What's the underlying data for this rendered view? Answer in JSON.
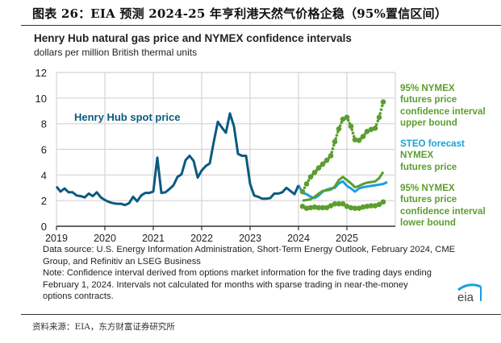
{
  "figure_title": "图表 26：EIA 预测 2024-25 年亨利港天然气价格企稳（95%置信区间）",
  "source_text": "资料来源：EIA，东方财富证券研究所",
  "chart_data": {
    "type": "line",
    "title": "Henry Hub natural gas price and NYMEX confidence intervals",
    "subtitle": "dollars per million British thermal units",
    "xlabel": "",
    "ylabel": "dollars per million British thermal units",
    "ylim": [
      0,
      12
    ],
    "yticks": [
      "0",
      "2",
      "4",
      "6",
      "8",
      "10",
      "12"
    ],
    "xticks": [
      "2019",
      "2020",
      "2021",
      "2022",
      "2023",
      "2024",
      "2025"
    ],
    "x_range": [
      "2019-01",
      "2025-12"
    ],
    "grid": true,
    "annotations": {
      "spot_label": "Henry Hub spot price",
      "upper_label": [
        "95% NYMEX",
        "futures price",
        "confidence interval",
        "upper bound"
      ],
      "steo_label": "STEO forecast",
      "nymex_label": [
        "NYMEX",
        "futures price"
      ],
      "lower_label": [
        "95% NYMEX",
        "futures price",
        "confidence interval",
        "lower bound"
      ]
    },
    "colors": {
      "spot": "#0b5a80",
      "steo": "#1aa0dc",
      "nymex": "#5b9e2f",
      "grid": "#d4d4d4",
      "axis": "#333333",
      "label_spot": "#0b5a80"
    },
    "series": [
      {
        "name": "Henry Hub spot price",
        "start": "2019-01",
        "values": [
          3.1,
          2.7,
          2.95,
          2.65,
          2.65,
          2.4,
          2.35,
          2.25,
          2.55,
          2.35,
          2.65,
          2.25,
          2.05,
          1.9,
          1.8,
          1.75,
          1.75,
          1.65,
          1.8,
          2.3,
          1.95,
          2.4,
          2.6,
          2.6,
          2.7,
          5.35,
          2.6,
          2.65,
          2.9,
          3.2,
          3.85,
          4.05,
          5.15,
          5.5,
          5.1,
          3.8,
          4.35,
          4.7,
          4.9,
          6.6,
          8.15,
          7.7,
          7.3,
          8.8,
          7.8,
          5.65,
          5.5,
          5.5,
          3.3,
          2.4,
          2.3,
          2.15,
          2.15,
          2.2,
          2.55,
          2.55,
          2.65,
          3.0,
          2.75,
          2.5,
          3.2
        ]
      },
      {
        "name": "STEO forecast",
        "start": "2024-01",
        "values": [
          3.2,
          2.6,
          2.5,
          2.3,
          2.2,
          2.4,
          2.7,
          2.85,
          2.95,
          3.0,
          3.35,
          3.5,
          3.15,
          2.95,
          2.7,
          2.95,
          3.05,
          3.1,
          3.15,
          3.2,
          3.25,
          3.3,
          3.45
        ]
      },
      {
        "name": "NYMEX futures price",
        "start": "2024-02",
        "values": [
          2.0,
          2.05,
          2.1,
          2.3,
          2.55,
          2.75,
          2.8,
          2.85,
          3.1,
          3.6,
          3.85,
          3.6,
          3.35,
          3.05,
          3.15,
          3.3,
          3.4,
          3.45,
          3.5,
          3.75,
          4.25
        ]
      },
      {
        "name": "95% NYMEX futures price confidence interval upper bound",
        "start": "2024-02",
        "values": [
          2.7,
          3.3,
          3.85,
          4.2,
          4.55,
          4.85,
          5.15,
          5.5,
          6.6,
          7.6,
          8.35,
          8.5,
          7.8,
          6.75,
          6.7,
          7.0,
          7.4,
          7.55,
          7.65,
          8.5,
          9.7
        ]
      },
      {
        "name": "95% NYMEX futures price confidence interval lower bound",
        "start": "2024-02",
        "values": [
          1.55,
          1.4,
          1.45,
          1.5,
          1.45,
          1.45,
          1.45,
          1.6,
          1.75,
          1.75,
          1.75,
          1.55,
          1.45,
          1.4,
          1.4,
          1.5,
          1.55,
          1.6,
          1.6,
          1.7,
          1.9
        ]
      }
    ]
  },
  "notes": {
    "data_source": "Data source: U.S. Energy Information Administration, Short-Term Energy Outlook, February 2024, CME Group, and Refinitiv an LSEG Business",
    "note": "Note: Confidence interval derived from options market information for the five trading days ending February 1, 2024. Intervals not calculated for months with sparse trading in near-the-money options contracts."
  },
  "logo_text": "eia"
}
